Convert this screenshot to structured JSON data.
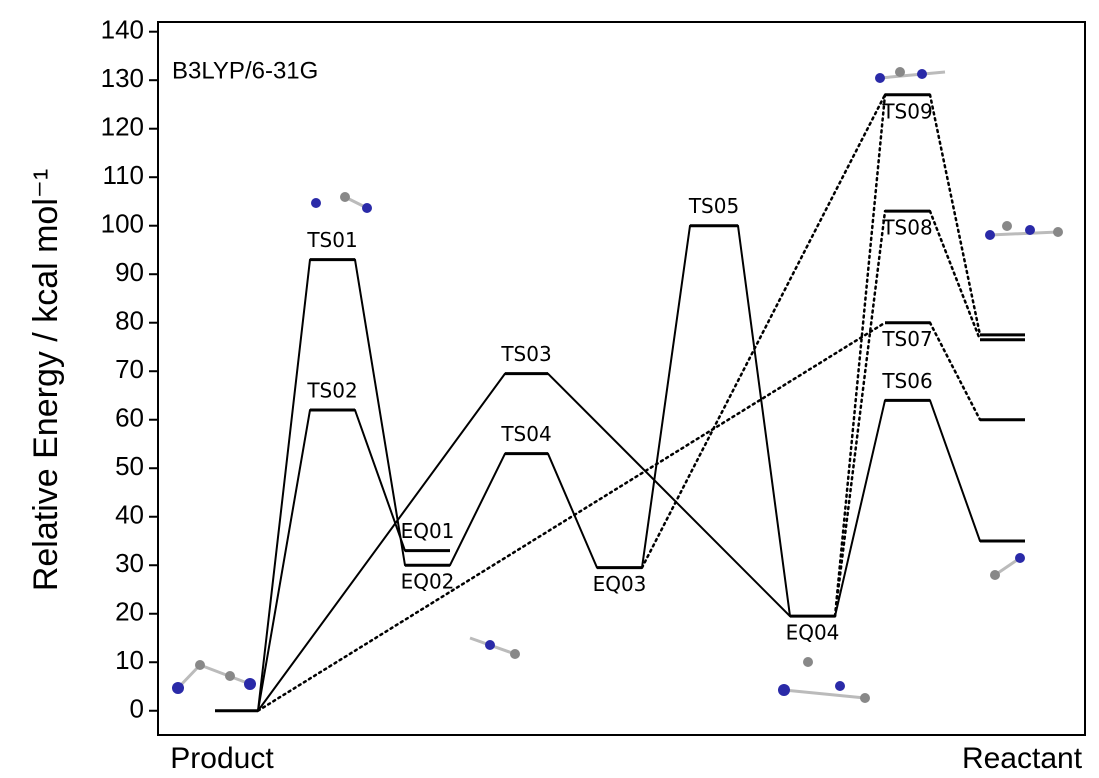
{
  "chart_data": {
    "type": "energy-diagram",
    "annotation": "B3LYP/6-31G",
    "y_label": "Relative Energy / kcal mol⁻¹",
    "x_labels": [
      "Product",
      "Reactant"
    ],
    "ylim": [
      -5,
      142
    ],
    "yticks": [
      0,
      10,
      20,
      30,
      40,
      50,
      60,
      70,
      80,
      90,
      100,
      110,
      120,
      130,
      140
    ],
    "levels": [
      {
        "name": null,
        "value": 0
      },
      {
        "name": "TS01",
        "value": 93
      },
      {
        "name": "TS02",
        "value": 62
      },
      {
        "name": "EQ01",
        "value": 33
      },
      {
        "name": "EQ02",
        "value": 30
      },
      {
        "name": "TS03",
        "value": 69.5
      },
      {
        "name": "TS04",
        "value": 53
      },
      {
        "name": "EQ03",
        "value": 29.5
      },
      {
        "name": "TS05",
        "value": 100
      },
      {
        "name": "EQ04",
        "value": 19.5
      },
      {
        "name": "TS09",
        "value": 127
      },
      {
        "name": "TS08",
        "value": 103
      },
      {
        "name": "TS07",
        "value": 80
      },
      {
        "name": "TS06",
        "value": 64
      },
      {
        "name": null,
        "value": 77.5
      },
      {
        "name": null,
        "value": 76.5
      },
      {
        "name": null,
        "value": 60
      },
      {
        "name": null,
        "value": 35
      }
    ]
  }
}
